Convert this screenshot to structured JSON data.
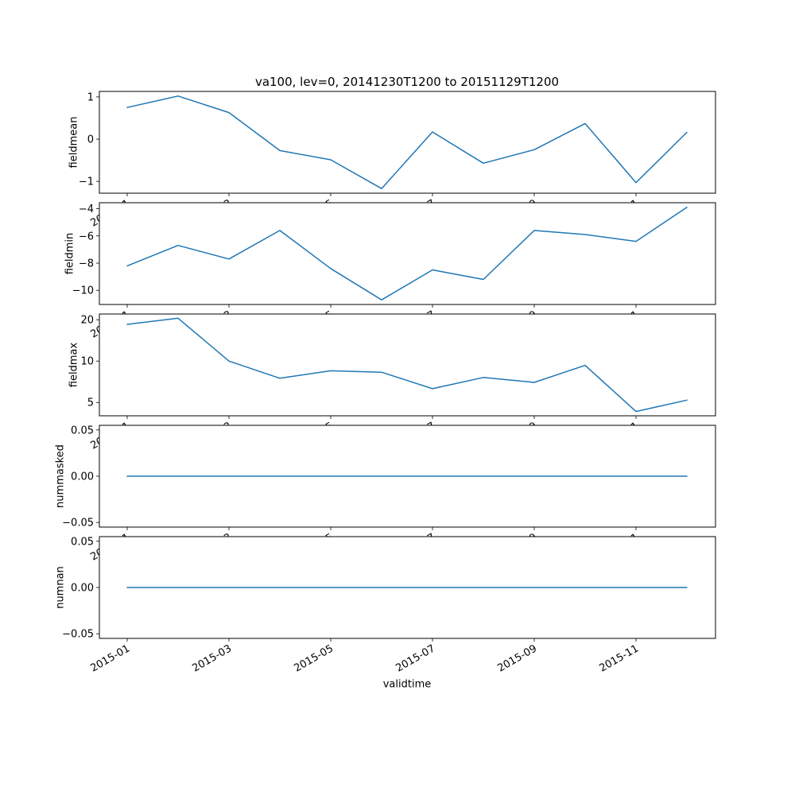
{
  "figure": {
    "title": "va100, lev=0, 20141230T1200 to 20151129T1200",
    "xlabel": "validtime",
    "line_color": "#1f77b4",
    "background_color": "#ffffff",
    "text_color": "#000000"
  },
  "x_axis": {
    "label": "validtime",
    "tick_labels": [
      "2015-01",
      "2015-03",
      "2015-05",
      "2015-07",
      "2015-09",
      "2015-11"
    ],
    "tick_positions": [
      0,
      2,
      4,
      6,
      8,
      10
    ],
    "points": [
      "2015-01",
      "2015-02",
      "2015-03",
      "2015-04",
      "2015-05",
      "2015-06",
      "2015-07",
      "2015-08",
      "2015-09",
      "2015-10",
      "2015-11",
      "2015-12"
    ]
  },
  "chart_data": [
    {
      "type": "line",
      "name": "fieldmean",
      "ylabel": "fieldmean",
      "yscale": "linear",
      "ylim": [
        -1.28,
        1.13
      ],
      "ytick_values": [
        1,
        0,
        -1
      ],
      "ytick_labels": [
        "1",
        "0",
        "−1"
      ],
      "x": [
        "2015-01",
        "2015-02",
        "2015-03",
        "2015-04",
        "2015-05",
        "2015-06",
        "2015-07",
        "2015-08",
        "2015-09",
        "2015-10",
        "2015-11",
        "2015-12"
      ],
      "values": [
        0.75,
        1.02,
        0.63,
        -0.27,
        -0.49,
        -1.17,
        0.17,
        -0.57,
        -0.25,
        0.37,
        -1.03,
        0.16
      ]
    },
    {
      "type": "line",
      "name": "fieldmin",
      "ylabel": "fieldmin",
      "yscale": "linear",
      "ylim": [
        -11.04,
        -3.56
      ],
      "ytick_values": [
        -4,
        -6,
        -8,
        -10
      ],
      "ytick_labels": [
        "−4",
        "−6",
        "−8",
        "−10"
      ],
      "x": [
        "2015-01",
        "2015-02",
        "2015-03",
        "2015-04",
        "2015-05",
        "2015-06",
        "2015-07",
        "2015-08",
        "2015-09",
        "2015-10",
        "2015-11",
        "2015-12"
      ],
      "values": [
        -8.2,
        -6.7,
        -7.7,
        -5.6,
        -8.4,
        -10.7,
        -8.5,
        -9.2,
        -5.6,
        -5.9,
        -6.4,
        -3.9
      ]
    },
    {
      "type": "line",
      "name": "fieldmax",
      "ylabel": "fieldmax",
      "yscale": "log",
      "ylim": [
        4.0,
        22.0
      ],
      "ytick_values": [
        20,
        10,
        5
      ],
      "ytick_labels": [
        "20",
        "10",
        "5"
      ],
      "x": [
        "2015-01",
        "2015-02",
        "2015-03",
        "2015-04",
        "2015-05",
        "2015-06",
        "2015-07",
        "2015-08",
        "2015-09",
        "2015-10",
        "2015-11",
        "2015-12"
      ],
      "values": [
        18.5,
        20.5,
        10.0,
        7.5,
        8.5,
        8.3,
        6.3,
        7.6,
        7.0,
        9.3,
        4.3,
        5.2
      ]
    },
    {
      "type": "line",
      "name": "nummasked",
      "ylabel": "nummasked",
      "yscale": "linear",
      "ylim": [
        -0.055,
        0.055
      ],
      "ytick_values": [
        0.05,
        0,
        -0.05
      ],
      "ytick_labels": [
        "0.05",
        "0.00",
        "−0.05"
      ],
      "x": [
        "2015-01",
        "2015-02",
        "2015-03",
        "2015-04",
        "2015-05",
        "2015-06",
        "2015-07",
        "2015-08",
        "2015-09",
        "2015-10",
        "2015-11",
        "2015-12"
      ],
      "values": [
        0,
        0,
        0,
        0,
        0,
        0,
        0,
        0,
        0,
        0,
        0,
        0
      ]
    },
    {
      "type": "line",
      "name": "numnan",
      "ylabel": "numnan",
      "yscale": "linear",
      "ylim": [
        -0.055,
        0.055
      ],
      "ytick_values": [
        0.05,
        0,
        -0.05
      ],
      "ytick_labels": [
        "0.05",
        "0.00",
        "−0.05"
      ],
      "x": [
        "2015-01",
        "2015-02",
        "2015-03",
        "2015-04",
        "2015-05",
        "2015-06",
        "2015-07",
        "2015-08",
        "2015-09",
        "2015-10",
        "2015-11",
        "2015-12"
      ],
      "values": [
        0,
        0,
        0,
        0,
        0,
        0,
        0,
        0,
        0,
        0,
        0,
        0
      ]
    }
  ]
}
